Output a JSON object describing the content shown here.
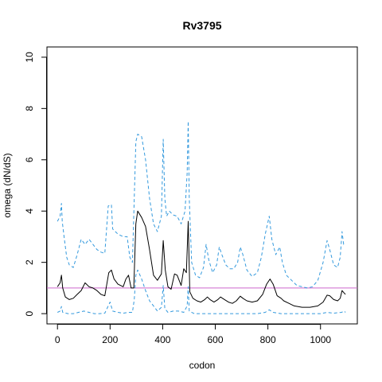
{
  "chart_data": {
    "type": "line",
    "title": "Rv3795",
    "xlabel": "codon",
    "ylabel": "omega (dN/dS)",
    "xlim": [
      -40,
      1140
    ],
    "ylim": [
      -0.4,
      10.4
    ],
    "x_ticks": [
      0,
      200,
      400,
      600,
      800,
      1000
    ],
    "y_ticks": [
      0,
      2,
      4,
      6,
      8,
      10
    ],
    "grid": false,
    "reference_line": {
      "y": 1,
      "color": "#cc66cc"
    },
    "colors": {
      "estimate": "#000000",
      "bounds": "#3399dd"
    },
    "series": [
      {
        "role": "estimate",
        "style": "solid",
        "points": [
          [
            0,
            1.05
          ],
          [
            10,
            1.2
          ],
          [
            15,
            1.5
          ],
          [
            20,
            1.0
          ],
          [
            30,
            0.65
          ],
          [
            45,
            0.55
          ],
          [
            60,
            0.6
          ],
          [
            75,
            0.75
          ],
          [
            90,
            0.9
          ],
          [
            105,
            1.2
          ],
          [
            120,
            1.05
          ],
          [
            135,
            1.0
          ],
          [
            150,
            0.9
          ],
          [
            165,
            0.75
          ],
          [
            180,
            0.7
          ],
          [
            195,
            1.6
          ],
          [
            205,
            1.7
          ],
          [
            215,
            1.35
          ],
          [
            230,
            1.15
          ],
          [
            250,
            1.05
          ],
          [
            260,
            1.35
          ],
          [
            270,
            1.5
          ],
          [
            280,
            1.0
          ],
          [
            290,
            1.0
          ],
          [
            298,
            3.5
          ],
          [
            305,
            4.0
          ],
          [
            320,
            3.75
          ],
          [
            335,
            3.4
          ],
          [
            350,
            2.5
          ],
          [
            365,
            1.5
          ],
          [
            380,
            1.3
          ],
          [
            395,
            1.55
          ],
          [
            402,
            2.85
          ],
          [
            410,
            1.7
          ],
          [
            420,
            1.05
          ],
          [
            432,
            0.95
          ],
          [
            445,
            1.55
          ],
          [
            455,
            1.5
          ],
          [
            470,
            1.1
          ],
          [
            480,
            1.75
          ],
          [
            490,
            1.6
          ],
          [
            497,
            3.6
          ],
          [
            503,
            0.85
          ],
          [
            515,
            0.6
          ],
          [
            530,
            0.5
          ],
          [
            545,
            0.45
          ],
          [
            560,
            0.55
          ],
          [
            570,
            0.65
          ],
          [
            580,
            0.55
          ],
          [
            595,
            0.45
          ],
          [
            610,
            0.55
          ],
          [
            620,
            0.65
          ],
          [
            635,
            0.55
          ],
          [
            650,
            0.45
          ],
          [
            665,
            0.4
          ],
          [
            680,
            0.5
          ],
          [
            695,
            0.68
          ],
          [
            705,
            0.6
          ],
          [
            720,
            0.5
          ],
          [
            740,
            0.45
          ],
          [
            760,
            0.5
          ],
          [
            780,
            0.75
          ],
          [
            795,
            1.15
          ],
          [
            808,
            1.35
          ],
          [
            820,
            1.15
          ],
          [
            835,
            0.7
          ],
          [
            850,
            0.6
          ],
          [
            860,
            0.5
          ],
          [
            880,
            0.4
          ],
          [
            900,
            0.3
          ],
          [
            930,
            0.25
          ],
          [
            960,
            0.25
          ],
          [
            990,
            0.3
          ],
          [
            1010,
            0.45
          ],
          [
            1025,
            0.72
          ],
          [
            1035,
            0.7
          ],
          [
            1050,
            0.55
          ],
          [
            1065,
            0.5
          ],
          [
            1075,
            0.6
          ],
          [
            1082,
            0.9
          ],
          [
            1090,
            0.8
          ],
          [
            1095,
            0.75
          ]
        ]
      },
      {
        "role": "upper",
        "style": "dashed",
        "points": [
          [
            0,
            3.6
          ],
          [
            10,
            3.8
          ],
          [
            15,
            4.3
          ],
          [
            18,
            3.6
          ],
          [
            25,
            3.0
          ],
          [
            35,
            2.2
          ],
          [
            45,
            1.9
          ],
          [
            60,
            1.8
          ],
          [
            75,
            2.3
          ],
          [
            90,
            2.9
          ],
          [
            105,
            2.7
          ],
          [
            120,
            2.9
          ],
          [
            135,
            2.7
          ],
          [
            150,
            2.5
          ],
          [
            165,
            2.4
          ],
          [
            180,
            2.35
          ],
          [
            193,
            4.2
          ],
          [
            205,
            4.25
          ],
          [
            210,
            3.3
          ],
          [
            230,
            3.1
          ],
          [
            250,
            3.0
          ],
          [
            265,
            3.0
          ],
          [
            275,
            2.2
          ],
          [
            285,
            2.0
          ],
          [
            292,
            4.5
          ],
          [
            298,
            6.7
          ],
          [
            305,
            7.0
          ],
          [
            320,
            6.9
          ],
          [
            335,
            6.0
          ],
          [
            350,
            4.5
          ],
          [
            365,
            3.5
          ],
          [
            380,
            3.2
          ],
          [
            395,
            3.8
          ],
          [
            402,
            6.8
          ],
          [
            408,
            4.5
          ],
          [
            415,
            3.8
          ],
          [
            425,
            4.0
          ],
          [
            440,
            3.85
          ],
          [
            455,
            3.8
          ],
          [
            470,
            3.5
          ],
          [
            485,
            4.0
          ],
          [
            493,
            5.5
          ],
          [
            497,
            7.5
          ],
          [
            501,
            4.5
          ],
          [
            510,
            2.0
          ],
          [
            525,
            1.5
          ],
          [
            540,
            1.4
          ],
          [
            555,
            1.8
          ],
          [
            565,
            2.7
          ],
          [
            575,
            2.1
          ],
          [
            590,
            1.6
          ],
          [
            605,
            1.9
          ],
          [
            615,
            2.6
          ],
          [
            625,
            2.3
          ],
          [
            640,
            1.9
          ],
          [
            655,
            1.75
          ],
          [
            670,
            1.75
          ],
          [
            685,
            2.0
          ],
          [
            695,
            2.6
          ],
          [
            705,
            2.3
          ],
          [
            720,
            1.7
          ],
          [
            740,
            1.45
          ],
          [
            760,
            1.6
          ],
          [
            775,
            2.2
          ],
          [
            790,
            3.1
          ],
          [
            805,
            3.8
          ],
          [
            815,
            2.9
          ],
          [
            830,
            2.3
          ],
          [
            845,
            2.6
          ],
          [
            855,
            2.0
          ],
          [
            870,
            1.5
          ],
          [
            890,
            1.3
          ],
          [
            910,
            1.1
          ],
          [
            930,
            1.05
          ],
          [
            950,
            1.0
          ],
          [
            970,
            1.05
          ],
          [
            990,
            1.3
          ],
          [
            1010,
            2.0
          ],
          [
            1025,
            2.85
          ],
          [
            1035,
            2.5
          ],
          [
            1050,
            1.9
          ],
          [
            1065,
            1.8
          ],
          [
            1075,
            2.2
          ],
          [
            1082,
            3.2
          ],
          [
            1088,
            2.7
          ],
          [
            1095,
            2.7
          ]
        ]
      },
      {
        "role": "lower",
        "style": "dashed",
        "points": [
          [
            0,
            0.05
          ],
          [
            10,
            0.1
          ],
          [
            15,
            0.28
          ],
          [
            20,
            0.05
          ],
          [
            40,
            0.0
          ],
          [
            60,
            0.0
          ],
          [
            80,
            0.05
          ],
          [
            100,
            0.1
          ],
          [
            120,
            0.05
          ],
          [
            140,
            0.0
          ],
          [
            160,
            0.0
          ],
          [
            180,
            0.02
          ],
          [
            193,
            0.3
          ],
          [
            200,
            0.45
          ],
          [
            210,
            0.1
          ],
          [
            230,
            0.05
          ],
          [
            250,
            0.02
          ],
          [
            270,
            0.05
          ],
          [
            285,
            0.05
          ],
          [
            292,
            0.55
          ],
          [
            298,
            1.5
          ],
          [
            305,
            1.7
          ],
          [
            320,
            1.35
          ],
          [
            335,
            0.9
          ],
          [
            350,
            0.5
          ],
          [
            365,
            0.3
          ],
          [
            380,
            0.1
          ],
          [
            395,
            0.25
          ],
          [
            402,
            1.1
          ],
          [
            408,
            0.2
          ],
          [
            420,
            0.05
          ],
          [
            440,
            0.1
          ],
          [
            460,
            0.1
          ],
          [
            480,
            0.05
          ],
          [
            493,
            0.3
          ],
          [
            497,
            1.05
          ],
          [
            501,
            0.1
          ],
          [
            520,
            0.0
          ],
          [
            560,
            0.0
          ],
          [
            600,
            0.0
          ],
          [
            640,
            0.0
          ],
          [
            680,
            0.0
          ],
          [
            720,
            0.0
          ],
          [
            760,
            0.0
          ],
          [
            790,
            0.05
          ],
          [
            805,
            0.15
          ],
          [
            820,
            0.05
          ],
          [
            850,
            0.0
          ],
          [
            900,
            0.0
          ],
          [
            950,
            0.0
          ],
          [
            1000,
            0.0
          ],
          [
            1025,
            0.05
          ],
          [
            1050,
            0.02
          ],
          [
            1080,
            0.05
          ],
          [
            1090,
            0.1
          ],
          [
            1095,
            0.05
          ]
        ]
      }
    ]
  }
}
